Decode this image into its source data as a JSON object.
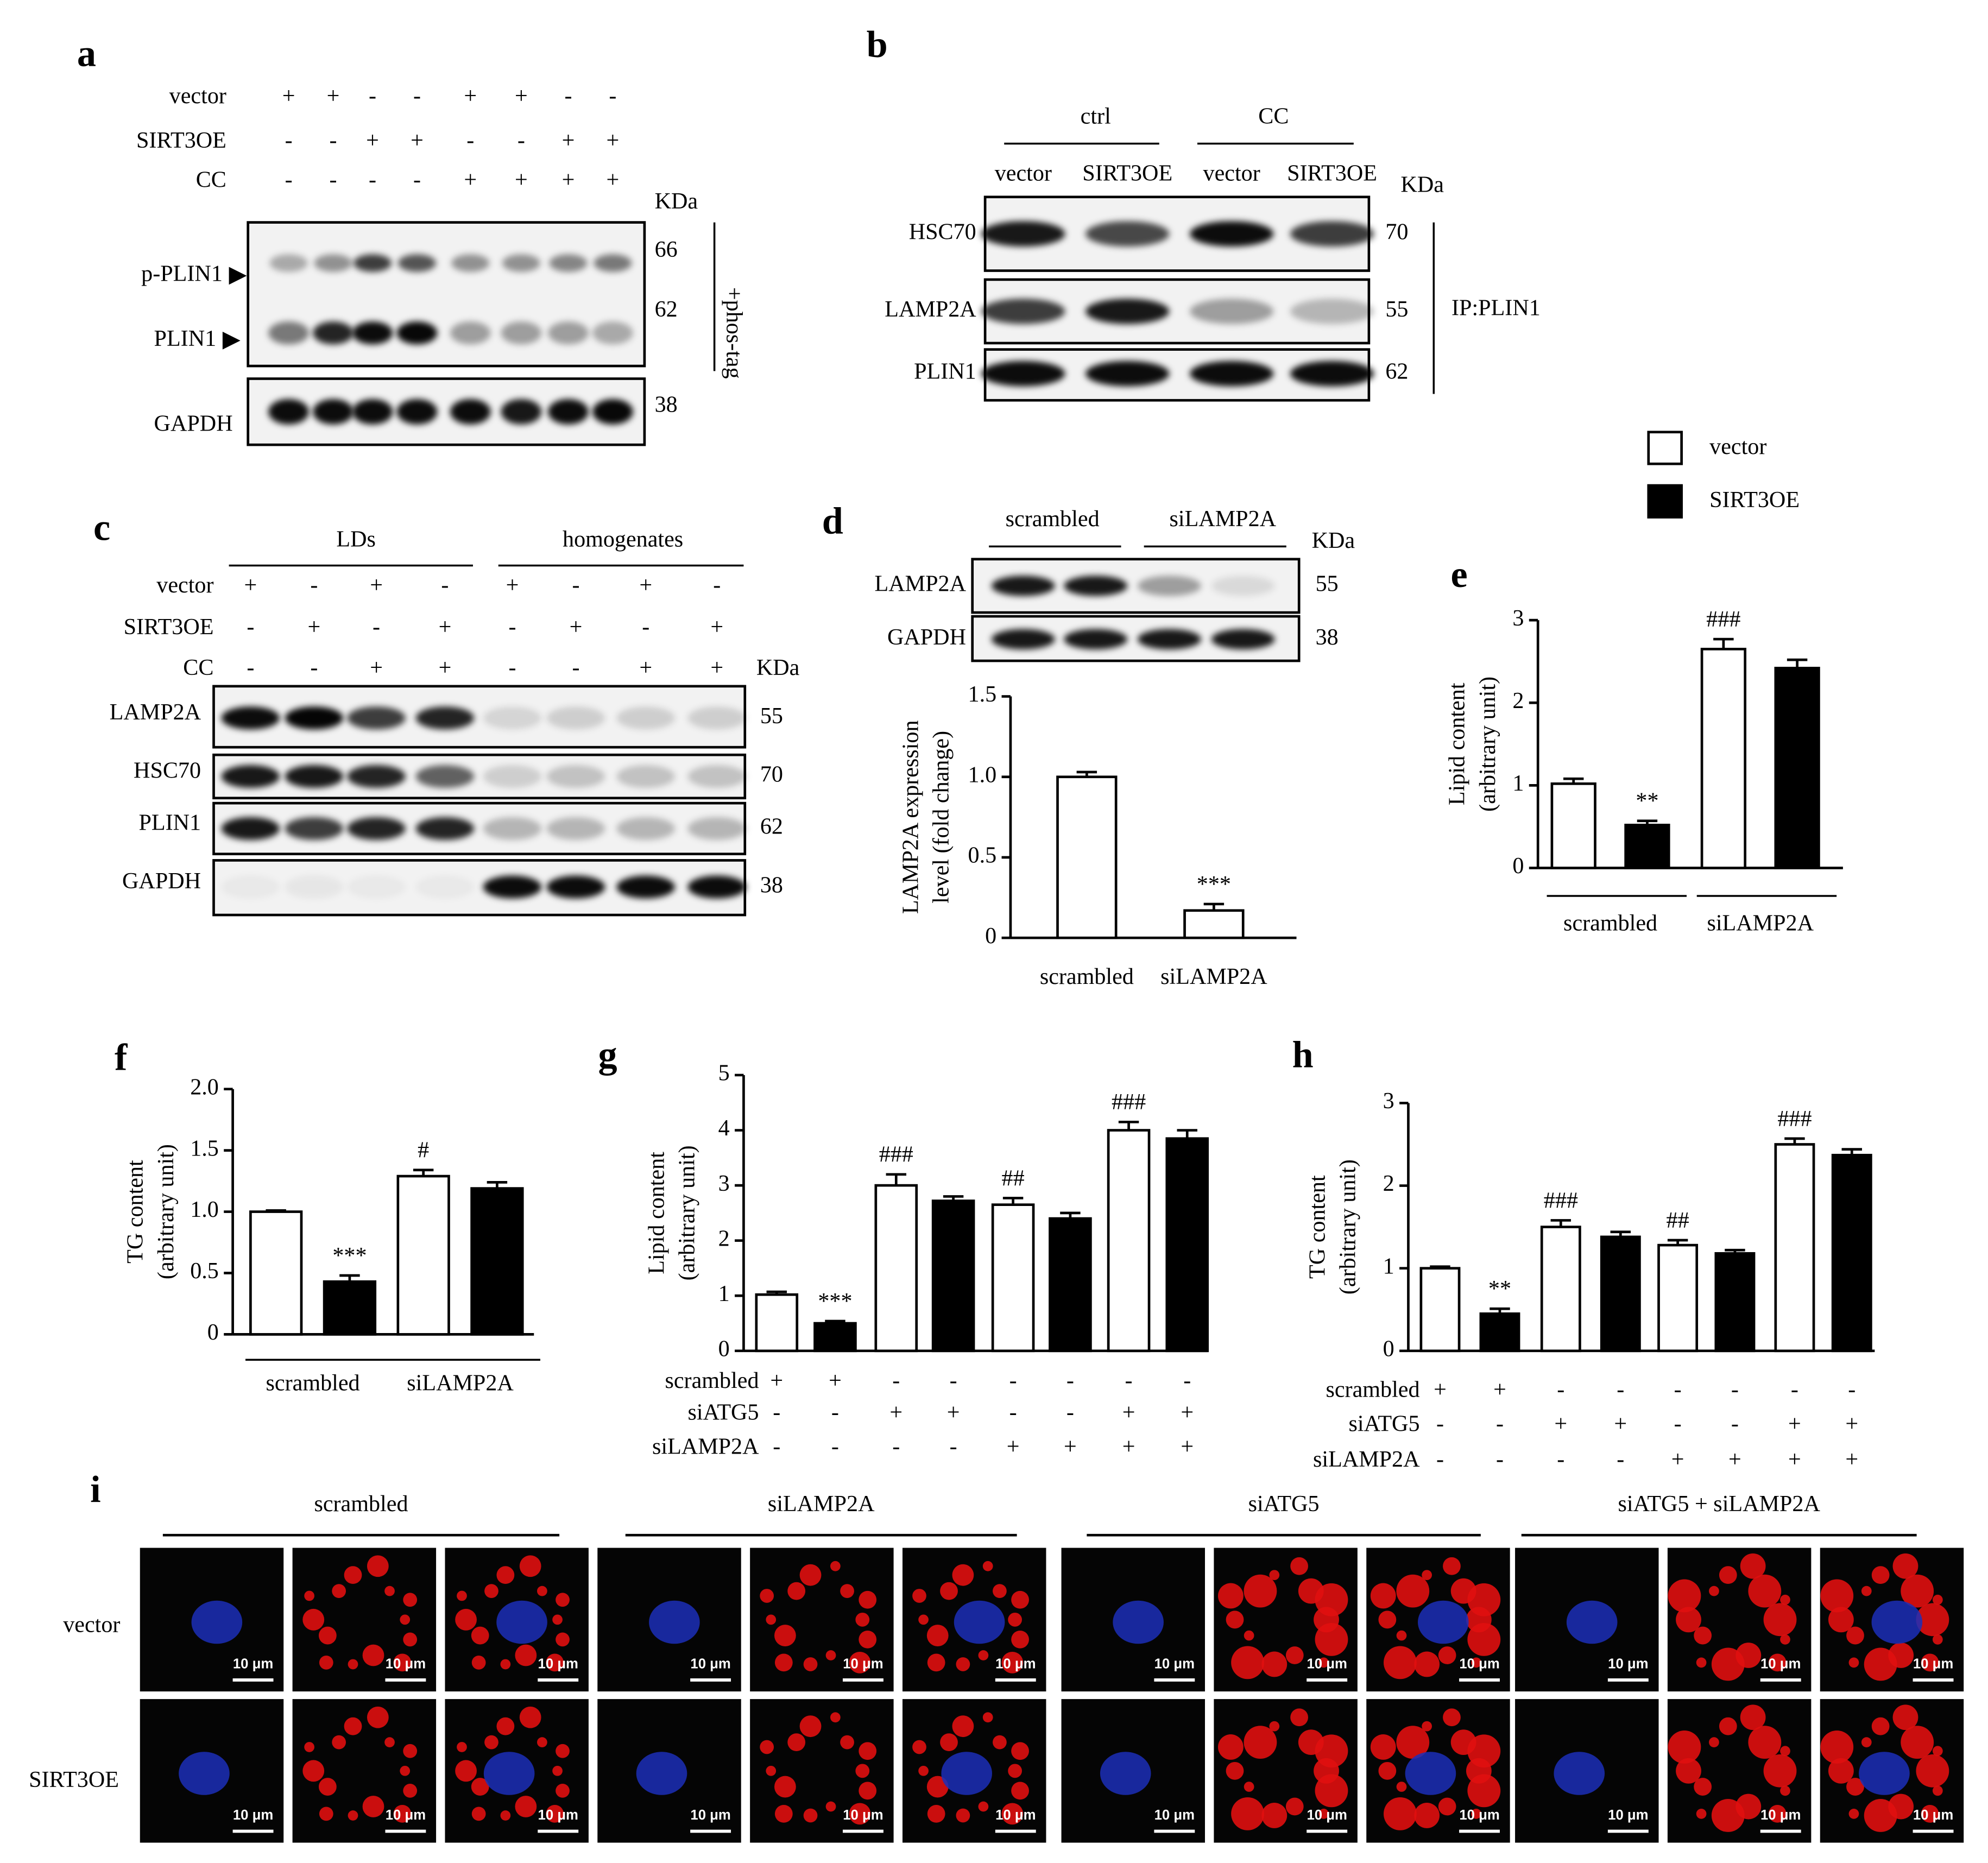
{
  "panel_labels": [
    "a",
    "b",
    "c",
    "d",
    "e",
    "f",
    "g",
    "h",
    "i"
  ],
  "panel_a": {
    "conditions": [
      {
        "name": "vector",
        "signs": [
          "+",
          "+",
          "-",
          "-",
          "+",
          "+",
          "-",
          "-"
        ]
      },
      {
        "name": "SIRT3OE",
        "signs": [
          "-",
          "-",
          "+",
          "+",
          "-",
          "-",
          "+",
          "+"
        ]
      },
      {
        "name": "CC",
        "signs": [
          "-",
          "-",
          "-",
          "-",
          "+",
          "+",
          "+",
          "+"
        ]
      }
    ],
    "unit": "KDa",
    "bands": [
      {
        "name": "p-PLIN1",
        "kda": 66
      },
      {
        "name": "PLIN1",
        "kda": 62
      },
      {
        "name": "GAPDH",
        "kda": 38
      }
    ],
    "phos_tag": "+phos-tag"
  },
  "panel_b": {
    "groups": [
      "ctrl",
      "CC"
    ],
    "lanes": [
      "vector",
      "SIRT3OE",
      "vector",
      "SIRT3OE"
    ],
    "unit": "KDa",
    "blots": [
      {
        "name": "HSC70",
        "kda": 70
      },
      {
        "name": "LAMP2A",
        "kda": 55
      },
      {
        "name": "PLIN1",
        "kda": 62
      }
    ],
    "ip": "IP:PLIN1"
  },
  "panel_c": {
    "groups": [
      "LDs",
      "homogenates"
    ],
    "conditions": [
      {
        "name": "vector",
        "signs": [
          "+",
          "-",
          "+",
          "-",
          "+",
          "-",
          "+",
          "-"
        ]
      },
      {
        "name": "SIRT3OE",
        "signs": [
          "-",
          "+",
          "-",
          "+",
          "-",
          "+",
          "-",
          "+"
        ]
      },
      {
        "name": "CC",
        "signs": [
          "-",
          "-",
          "+",
          "+",
          "-",
          "-",
          "+",
          "+"
        ]
      }
    ],
    "unit": "KDa",
    "blots": [
      {
        "name": "LAMP2A",
        "kda": 55
      },
      {
        "name": "HSC70",
        "kda": 70
      },
      {
        "name": "PLIN1",
        "kda": 62
      },
      {
        "name": "GAPDH",
        "kda": 38
      }
    ]
  },
  "panel_d": {
    "groups": [
      "scrambled",
      "siLAMP2A"
    ],
    "unit": "KDa",
    "blots": [
      {
        "name": "LAMP2A",
        "kda": 55
      },
      {
        "name": "GAPDH",
        "kda": 38
      }
    ]
  },
  "panel_i": {
    "groups": [
      "scrambled",
      "siLAMP2A",
      "siATG5",
      "siATG5 + siLAMP2A"
    ],
    "rows": [
      "vector",
      "SIRT3OE"
    ],
    "scale_bar": "10 μm"
  },
  "chart_data": [
    {
      "type": "bar",
      "y_label": [
        "LAMP2A expression",
        "level (fold change)"
      ],
      "categories": [
        "scrambled",
        "siLAMP2A"
      ],
      "values": [
        1.0,
        0.17
      ],
      "errors": [
        0.03,
        0.04
      ],
      "annotations": [
        null,
        "***"
      ],
      "color": "#ffffff",
      "ylim": [
        0,
        1.5
      ],
      "yticks": [
        0,
        0.5,
        {
          "value": 1,
          "label": "1.0"
        },
        1.5
      ]
    },
    {
      "type": "bar",
      "y_label": [
        "Lipid content",
        "(arbitrary unit)"
      ],
      "categories": [
        "scrambled",
        "siLAMP2A"
      ],
      "series": [
        {
          "name": "vector",
          "color": "#ffffff",
          "values": [
            1.02,
            2.65
          ],
          "errors": [
            0.06,
            0.12
          ],
          "annotations": [
            null,
            "###"
          ]
        },
        {
          "name": "SIRT3OE",
          "color": "#000000",
          "values": [
            0.52,
            2.42
          ],
          "errors": [
            0.05,
            0.1
          ],
          "annotations": [
            "**",
            null
          ]
        }
      ],
      "ylim": [
        0,
        3
      ],
      "yticks": [
        0,
        1,
        2,
        3
      ],
      "legend": "top-right"
    },
    {
      "type": "bar",
      "y_label": [
        "TG content",
        "(arbitrary unit)"
      ],
      "categories": [
        "scrambled",
        "siLAMP2A"
      ],
      "series": [
        {
          "color": "#ffffff",
          "values": [
            1.0,
            1.29
          ],
          "errors": [
            0.01,
            0.05
          ],
          "annotations": [
            null,
            "#"
          ]
        },
        {
          "color": "#000000",
          "values": [
            0.43,
            1.19
          ],
          "errors": [
            0.05,
            0.05
          ],
          "annotations": [
            "***",
            null
          ]
        }
      ],
      "ylim": [
        0,
        2
      ],
      "yticks": [
        0,
        0.5,
        {
          "value": 1,
          "label": "1.0"
        },
        1.5,
        {
          "value": 2,
          "label": "2.0"
        }
      ]
    },
    {
      "type": "bar",
      "y_label": [
        "Lipid content",
        "(arbitrary unit)"
      ],
      "categories": [
        null,
        null,
        null,
        null
      ],
      "series": [
        {
          "color": "#ffffff",
          "values": [
            1.02,
            3.0,
            2.65,
            4.0
          ],
          "errors": [
            0.05,
            0.2,
            0.12,
            0.15
          ],
          "annotations": [
            null,
            "###",
            "##",
            "###"
          ]
        },
        {
          "color": "#000000",
          "values": [
            0.5,
            2.72,
            2.4,
            3.85
          ],
          "errors": [
            0.04,
            0.08,
            0.1,
            0.15
          ],
          "annotations": [
            "***",
            null,
            null,
            null
          ]
        }
      ],
      "conditions": [
        {
          "name": "scrambled",
          "signs": [
            "+",
            "+",
            "-",
            "-",
            "-",
            "-",
            "-",
            "-"
          ]
        },
        {
          "name": "siATG5",
          "signs": [
            "-",
            "-",
            "+",
            "+",
            "-",
            "-",
            "+",
            "+"
          ]
        },
        {
          "name": "siLAMP2A",
          "signs": [
            "-",
            "-",
            "-",
            "-",
            "+",
            "+",
            "+",
            "+"
          ]
        }
      ],
      "ylim": [
        0,
        5
      ],
      "yticks": [
        0,
        1,
        2,
        3,
        4,
        5
      ]
    },
    {
      "type": "bar",
      "y_label": [
        "TG content",
        "(arbitrary unit)"
      ],
      "categories": [
        null,
        null,
        null,
        null
      ],
      "series": [
        {
          "color": "#ffffff",
          "values": [
            1.0,
            1.5,
            1.28,
            2.5
          ],
          "errors": [
            0.02,
            0.08,
            0.06,
            0.07
          ],
          "annotations": [
            null,
            "###",
            "##",
            "###"
          ]
        },
        {
          "color": "#000000",
          "values": [
            0.45,
            1.38,
            1.18,
            2.37
          ],
          "errors": [
            0.06,
            0.06,
            0.04,
            0.07
          ],
          "annotations": [
            "**",
            null,
            null,
            null
          ]
        }
      ],
      "conditions": [
        {
          "name": "scrambled",
          "signs": [
            "+",
            "+",
            "-",
            "-",
            "-",
            "-",
            "-",
            "-"
          ]
        },
        {
          "name": "siATG5",
          "signs": [
            "-",
            "-",
            "+",
            "+",
            "-",
            "-",
            "+",
            "+"
          ]
        },
        {
          "name": "siLAMP2A",
          "signs": [
            "-",
            "-",
            "-",
            "-",
            "+",
            "+",
            "+",
            "+"
          ]
        }
      ],
      "ylim": [
        0,
        3
      ],
      "yticks": [
        0,
        1,
        2,
        3
      ]
    }
  ]
}
